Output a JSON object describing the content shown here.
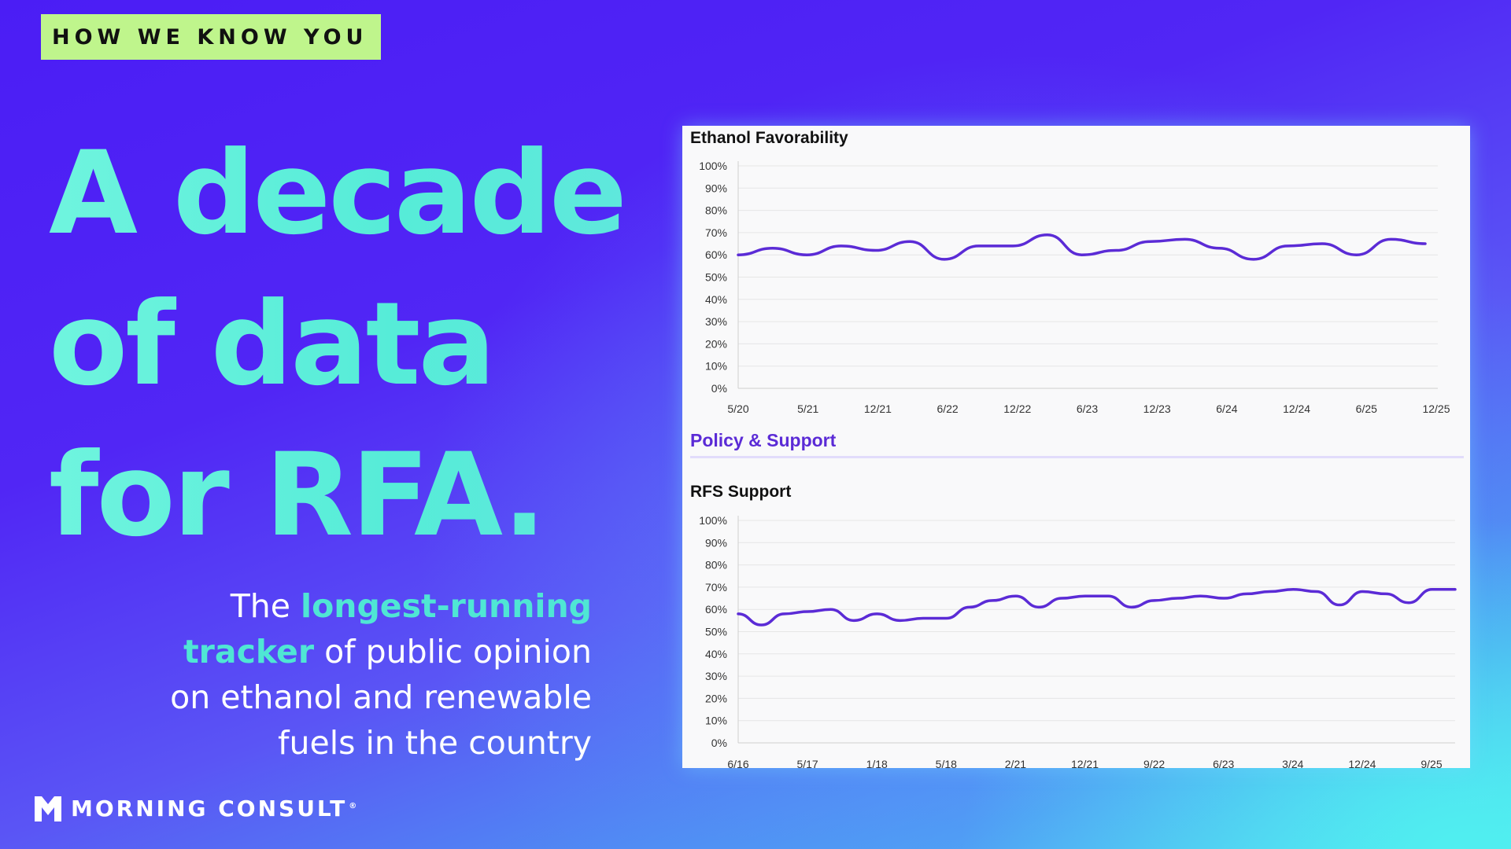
{
  "badge": {
    "label": "HOW WE KNOW YOU"
  },
  "headline": {
    "line1": "A decade",
    "line2": "of data",
    "line3": "for RFA."
  },
  "tagline": {
    "part1": "The ",
    "highlight1": "longest-running",
    "highlight2": "tracker",
    "part2": " of public opinion",
    "line3": "on ethanol and renewable",
    "line4": "fuels in the country"
  },
  "logo": {
    "name": "MORNING CONSULT",
    "reg": "®"
  },
  "section": {
    "title": "Policy & Support"
  },
  "colors": {
    "line": "#5b2bd6",
    "badge": "#bff58c",
    "highlight": "#4fe6d4"
  },
  "chart_data": [
    {
      "type": "line",
      "title": "Ethanol Favorability",
      "x_ticks": [
        "5/20",
        "5/21",
        "12/21",
        "6/22",
        "12/22",
        "6/23",
        "12/23",
        "6/24",
        "12/24",
        "6/25",
        "12/25"
      ],
      "y_ticks": [
        "100%",
        "90%",
        "80%",
        "70%",
        "60%",
        "50%",
        "40%",
        "30%",
        "20%",
        "10%",
        "0%"
      ],
      "ylim": [
        0,
        100
      ],
      "grid": true,
      "series": [
        {
          "values": [
            60,
            63,
            60,
            64,
            62,
            66,
            58,
            64,
            64,
            69,
            60,
            62,
            66,
            67,
            63,
            58,
            64,
            65,
            60,
            67,
            65
          ]
        }
      ]
    },
    {
      "type": "line",
      "title": "RFS Support",
      "x_ticks": [
        "6/16",
        "5/17",
        "1/18",
        "5/18",
        "2/21",
        "12/21",
        "9/22",
        "6/23",
        "3/24",
        "12/24",
        "9/25"
      ],
      "y_ticks": [
        "100%",
        "90%",
        "80%",
        "70%",
        "60%",
        "50%",
        "40%",
        "30%",
        "20%",
        "10%",
        "0%"
      ],
      "ylim": [
        0,
        100
      ],
      "grid": true,
      "series": [
        {
          "values": [
            58,
            53,
            58,
            59,
            60,
            55,
            58,
            55,
            56,
            56,
            61,
            64,
            66,
            61,
            65,
            66,
            66,
            61,
            64,
            65,
            66,
            65,
            67,
            68,
            69,
            68,
            62,
            68,
            67,
            63,
            69,
            69
          ]
        }
      ]
    }
  ]
}
